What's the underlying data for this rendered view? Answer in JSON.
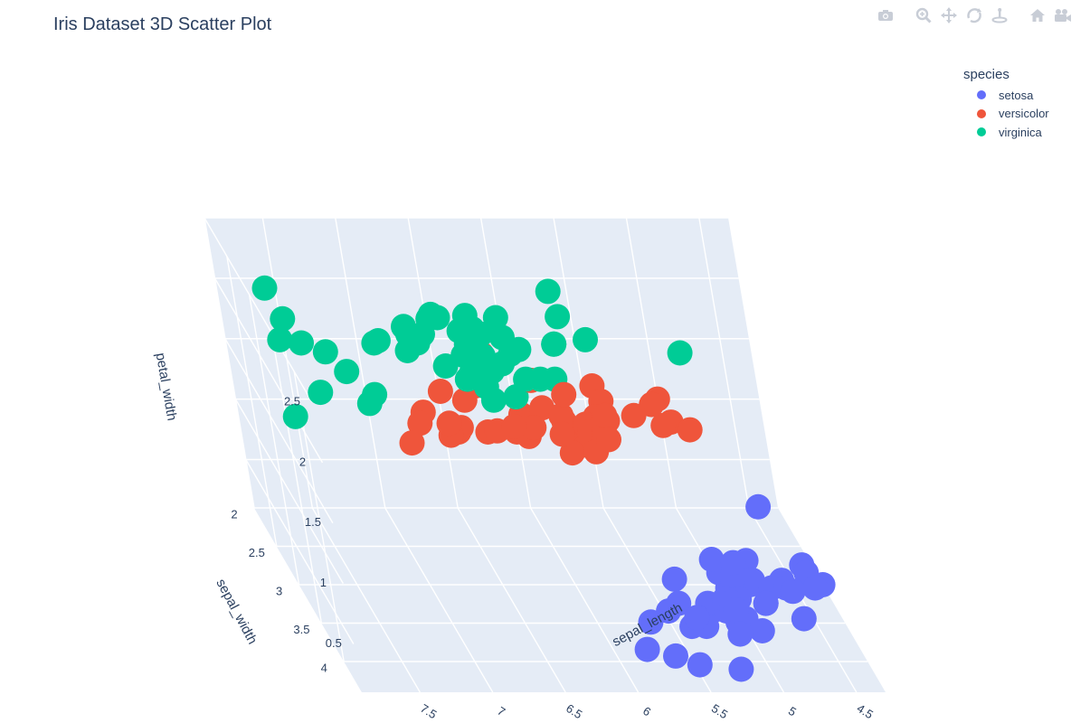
{
  "chart_data": {
    "type": "scatter",
    "title": "Iris Dataset 3D Scatter Plot",
    "xlabel": "sepal_length",
    "ylabel": "sepal_width",
    "zlabel": "petal_width",
    "x_ticks": [
      "4.5",
      "5",
      "5.5",
      "6",
      "6.5",
      "7",
      "7.5"
    ],
    "y_ticks": [
      "2",
      "2.5",
      "3",
      "3.5",
      "4"
    ],
    "z_ticks": [
      "0.5",
      "1",
      "1.5",
      "2",
      "2.5"
    ],
    "legend_title": "species",
    "legend_position": "top-right",
    "series": [
      {
        "name": "setosa",
        "color": "#636efa",
        "points": [
          [
            5.1,
            3.5,
            0.2
          ],
          [
            4.9,
            3.0,
            0.2
          ],
          [
            4.7,
            3.2,
            0.2
          ],
          [
            4.6,
            3.1,
            0.2
          ],
          [
            5.0,
            3.6,
            0.2
          ],
          [
            5.4,
            3.9,
            0.4
          ],
          [
            4.6,
            3.4,
            0.3
          ],
          [
            5.0,
            3.4,
            0.2
          ],
          [
            4.4,
            2.9,
            0.2
          ],
          [
            4.9,
            3.1,
            0.1
          ],
          [
            5.4,
            3.7,
            0.2
          ],
          [
            4.8,
            3.4,
            0.2
          ],
          [
            4.8,
            3.0,
            0.1
          ],
          [
            4.3,
            3.0,
            0.1
          ],
          [
            5.8,
            4.0,
            0.2
          ],
          [
            5.7,
            4.4,
            0.4
          ],
          [
            5.4,
            3.9,
            0.4
          ],
          [
            5.1,
            3.5,
            0.3
          ],
          [
            5.7,
            3.8,
            0.3
          ],
          [
            5.1,
            3.8,
            0.3
          ],
          [
            5.4,
            3.4,
            0.2
          ],
          [
            5.1,
            3.7,
            0.4
          ],
          [
            4.6,
            3.6,
            0.2
          ],
          [
            5.1,
            3.3,
            0.5
          ],
          [
            4.8,
            3.4,
            0.2
          ],
          [
            5.0,
            3.0,
            0.2
          ],
          [
            5.0,
            3.4,
            0.4
          ],
          [
            5.2,
            3.5,
            0.2
          ],
          [
            5.2,
            3.4,
            0.2
          ],
          [
            4.7,
            3.2,
            0.2
          ],
          [
            4.8,
            3.1,
            0.2
          ],
          [
            5.4,
            3.4,
            0.4
          ],
          [
            5.2,
            4.1,
            0.1
          ],
          [
            5.5,
            4.2,
            0.2
          ],
          [
            4.9,
            3.1,
            0.2
          ],
          [
            5.0,
            3.2,
            0.2
          ],
          [
            5.5,
            3.5,
            0.2
          ],
          [
            4.9,
            3.6,
            0.1
          ],
          [
            4.4,
            3.0,
            0.2
          ],
          [
            5.1,
            3.4,
            0.2
          ],
          [
            5.0,
            3.5,
            0.3
          ],
          [
            4.5,
            2.3,
            0.3
          ],
          [
            4.4,
            3.2,
            0.2
          ],
          [
            5.0,
            3.5,
            0.6
          ],
          [
            5.1,
            3.8,
            0.4
          ],
          [
            4.8,
            3.0,
            0.3
          ],
          [
            5.1,
            3.8,
            0.2
          ],
          [
            4.6,
            3.2,
            0.2
          ],
          [
            5.3,
            3.7,
            0.2
          ],
          [
            5.0,
            3.3,
            0.2
          ]
        ]
      },
      {
        "name": "versicolor",
        "color": "#ef553b",
        "points": [
          [
            7.0,
            3.2,
            1.4
          ],
          [
            6.4,
            3.2,
            1.5
          ],
          [
            6.9,
            3.1,
            1.5
          ],
          [
            5.5,
            2.3,
            1.3
          ],
          [
            6.5,
            2.8,
            1.5
          ],
          [
            5.7,
            2.8,
            1.3
          ],
          [
            6.3,
            3.3,
            1.6
          ],
          [
            4.9,
            2.4,
            1.0
          ],
          [
            6.6,
            2.9,
            1.3
          ],
          [
            5.2,
            2.7,
            1.4
          ],
          [
            5.0,
            2.0,
            1.0
          ],
          [
            5.9,
            3.0,
            1.5
          ],
          [
            6.0,
            2.2,
            1.0
          ],
          [
            6.1,
            2.9,
            1.4
          ],
          [
            5.6,
            2.9,
            1.3
          ],
          [
            6.7,
            3.1,
            1.4
          ],
          [
            5.6,
            3.0,
            1.5
          ],
          [
            5.8,
            2.7,
            1.0
          ],
          [
            6.2,
            2.2,
            1.5
          ],
          [
            5.6,
            2.5,
            1.1
          ],
          [
            5.9,
            3.2,
            1.8
          ],
          [
            6.1,
            2.8,
            1.3
          ],
          [
            6.3,
            2.5,
            1.5
          ],
          [
            6.1,
            2.8,
            1.2
          ],
          [
            6.4,
            2.9,
            1.3
          ],
          [
            6.6,
            3.0,
            1.4
          ],
          [
            6.8,
            2.8,
            1.4
          ],
          [
            6.7,
            3.0,
            1.7
          ],
          [
            6.0,
            2.9,
            1.5
          ],
          [
            5.7,
            2.6,
            1.0
          ],
          [
            5.5,
            2.4,
            1.1
          ],
          [
            5.5,
            2.4,
            1.0
          ],
          [
            5.8,
            2.7,
            1.2
          ],
          [
            6.0,
            2.7,
            1.6
          ],
          [
            5.4,
            3.0,
            1.5
          ],
          [
            6.0,
            3.4,
            1.6
          ],
          [
            6.7,
            3.1,
            1.5
          ],
          [
            6.3,
            2.3,
            1.3
          ],
          [
            5.6,
            3.0,
            1.3
          ],
          [
            5.5,
            2.5,
            1.3
          ],
          [
            5.5,
            2.6,
            1.2
          ],
          [
            6.1,
            3.0,
            1.4
          ],
          [
            5.8,
            2.6,
            1.2
          ],
          [
            5.0,
            2.3,
            1.0
          ],
          [
            5.6,
            2.7,
            1.3
          ],
          [
            5.7,
            3.0,
            1.2
          ],
          [
            5.7,
            2.9,
            1.3
          ],
          [
            6.2,
            2.9,
            1.3
          ],
          [
            5.1,
            2.5,
            1.1
          ],
          [
            5.7,
            2.8,
            1.3
          ]
        ]
      },
      {
        "name": "virginica",
        "color": "#00cc96",
        "points": [
          [
            6.3,
            3.3,
            2.5
          ],
          [
            5.8,
            2.7,
            1.9
          ],
          [
            7.1,
            3.0,
            2.1
          ],
          [
            6.3,
            2.9,
            1.8
          ],
          [
            6.5,
            3.0,
            2.2
          ],
          [
            7.6,
            3.0,
            2.1
          ],
          [
            4.9,
            2.5,
            1.7
          ],
          [
            7.3,
            2.9,
            1.8
          ],
          [
            6.7,
            2.5,
            1.8
          ],
          [
            7.2,
            3.6,
            2.5
          ],
          [
            6.5,
            3.2,
            2.0
          ],
          [
            6.4,
            2.7,
            1.9
          ],
          [
            6.8,
            3.0,
            2.1
          ],
          [
            5.7,
            2.5,
            2.0
          ],
          [
            5.8,
            2.8,
            2.4
          ],
          [
            6.4,
            3.2,
            2.3
          ],
          [
            6.5,
            3.0,
            1.8
          ],
          [
            7.7,
            3.8,
            2.2
          ],
          [
            7.7,
            2.6,
            2.3
          ],
          [
            6.0,
            2.2,
            1.5
          ],
          [
            6.9,
            3.2,
            2.3
          ],
          [
            5.6,
            2.8,
            2.0
          ],
          [
            7.7,
            2.8,
            2.0
          ],
          [
            6.3,
            2.7,
            1.8
          ],
          [
            6.7,
            3.3,
            2.1
          ],
          [
            7.2,
            3.2,
            1.8
          ],
          [
            6.2,
            2.8,
            1.8
          ],
          [
            6.1,
            3.0,
            1.8
          ],
          [
            6.4,
            2.8,
            2.1
          ],
          [
            7.2,
            3.0,
            1.6
          ],
          [
            7.4,
            2.8,
            1.9
          ],
          [
            7.9,
            3.8,
            2.0
          ],
          [
            6.4,
            2.8,
            2.2
          ],
          [
            6.3,
            2.8,
            1.5
          ],
          [
            6.1,
            2.6,
            1.4
          ],
          [
            7.7,
            3.0,
            2.3
          ],
          [
            6.3,
            3.4,
            2.4
          ],
          [
            6.4,
            3.1,
            1.8
          ],
          [
            6.0,
            3.0,
            1.8
          ],
          [
            6.9,
            3.1,
            2.1
          ],
          [
            6.7,
            3.1,
            2.4
          ],
          [
            6.9,
            3.1,
            2.3
          ],
          [
            5.8,
            2.7,
            1.9
          ],
          [
            6.8,
            3.2,
            2.3
          ],
          [
            6.7,
            3.3,
            2.5
          ],
          [
            6.7,
            3.0,
            2.3
          ],
          [
            6.3,
            2.5,
            1.9
          ],
          [
            6.5,
            3.0,
            2.0
          ],
          [
            6.2,
            3.4,
            2.3
          ],
          [
            5.9,
            3.0,
            1.8
          ]
        ]
      }
    ]
  },
  "modebar": {
    "icons": [
      "camera-icon",
      "zoom-icon",
      "pan-icon",
      "orbit-icon",
      "turntable-icon",
      "home-icon",
      "camera-view-icon",
      "plotly-logo-icon"
    ]
  }
}
